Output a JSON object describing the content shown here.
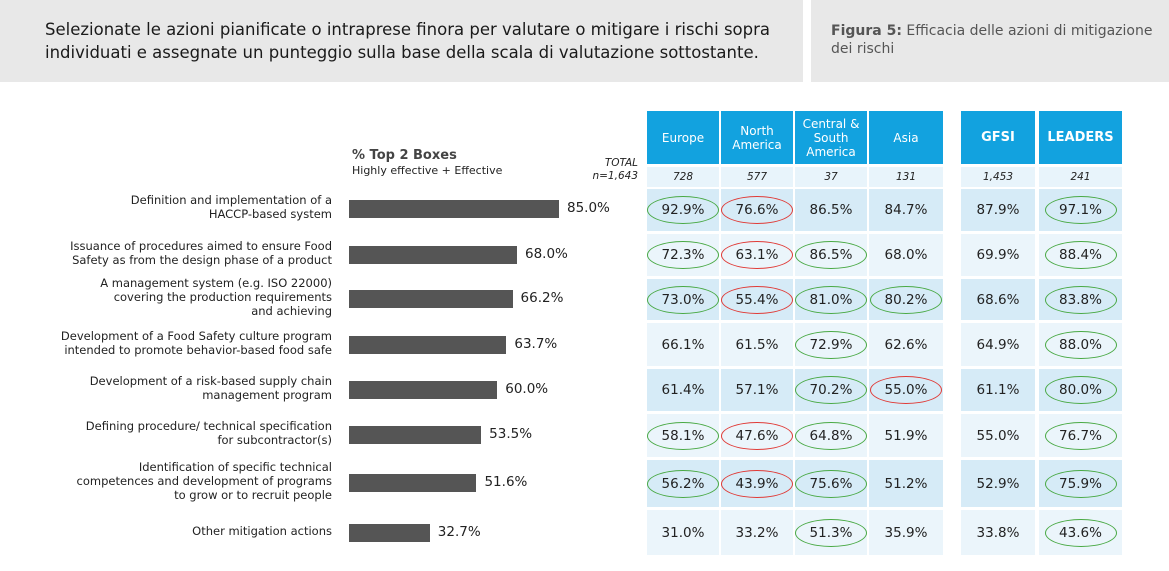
{
  "header": {
    "question": "Selezionate le azioni pianificate o intraprese finora per valutare o mitigare i rischi sopra individuati e assegnate un punteggio sulla base della scala di valutazione sottostante.",
    "figure_label": "Figura 5:",
    "figure_title": "Efficacia delle azioni di mitigazione dei rischi"
  },
  "subtitle": {
    "line1": "% Top 2 Boxes",
    "line2": "Highly effective + Effective"
  },
  "total": {
    "label": "TOTAL",
    "n": "n=1,643"
  },
  "colors": {
    "header_blue": "#12a2df",
    "bar": "#555555",
    "green_oval": "#49a944",
    "red_oval": "#e03a36"
  },
  "chart_data": {
    "type": "bar",
    "orientation": "horizontal",
    "categories": [
      "Definition and implementation of a HACCP-based system",
      "Issuance of procedures aimed to ensure Food Safety as from the design phase of a product",
      "A management system (e.g. ISO 22000) covering the production requirements and achieving",
      "Development of a Food Safety culture program intended to promote behavior-based food safe",
      "Development of a risk-based supply chain management program",
      "Defining procedure/ technical specification for subcontractor(s)",
      "Identification of specific technical competences and development of programs to grow or to recruit people",
      "Other mitigation actions"
    ],
    "values": [
      85.0,
      68.0,
      66.2,
      63.7,
      60.0,
      53.5,
      51.6,
      32.7
    ],
    "value_labels": [
      "85.0%",
      "68.0%",
      "66.2%",
      "63.7%",
      "60.0%",
      "53.5%",
      "51.6%",
      "32.7%"
    ],
    "label_lines": [
      [
        "Definition and implementation of a",
        "HACCP-based system"
      ],
      [
        "Issuance of procedures aimed to ensure Food",
        "Safety as from the design phase of a product"
      ],
      [
        "A management system (e.g. ISO 22000)",
        "covering the production requirements",
        "and achieving"
      ],
      [
        "Development of a Food Safety culture program",
        "intended to promote behavior-based food safe"
      ],
      [
        "Development of a risk-based supply chain",
        "management program"
      ],
      [
        "Defining procedure/ technical specification",
        "for subcontractor(s)"
      ],
      [
        "Identification of specific technical",
        "competences and development of programs",
        "to grow or to recruit people"
      ],
      [
        "Other mitigation actions"
      ]
    ],
    "xlim": [
      0,
      100
    ]
  },
  "table": {
    "columns": [
      {
        "label": "Europe",
        "n": "728"
      },
      {
        "label": "North America",
        "n": "577"
      },
      {
        "label": "Central & South America",
        "n": "37"
      },
      {
        "label": "Asia",
        "n": "131"
      },
      {
        "label": "GFSI",
        "n": "1,453"
      },
      {
        "label": "LEADERS",
        "n": "241"
      }
    ],
    "rows": [
      [
        "92.9%",
        "76.6%",
        "86.5%",
        "84.7%",
        "87.9%",
        "97.1%"
      ],
      [
        "72.3%",
        "63.1%",
        "86.5%",
        "68.0%",
        "69.9%",
        "88.4%"
      ],
      [
        "73.0%",
        "55.4%",
        "81.0%",
        "80.2%",
        "68.6%",
        "83.8%"
      ],
      [
        "66.1%",
        "61.5%",
        "72.9%",
        "62.6%",
        "64.9%",
        "88.0%"
      ],
      [
        "61.4%",
        "57.1%",
        "70.2%",
        "55.0%",
        "61.1%",
        "80.0%"
      ],
      [
        "58.1%",
        "47.6%",
        "64.8%",
        "51.9%",
        "55.0%",
        "76.7%"
      ],
      [
        "56.2%",
        "43.9%",
        "75.6%",
        "51.2%",
        "52.9%",
        "75.9%"
      ],
      [
        "31.0%",
        "33.2%",
        "51.3%",
        "35.9%",
        "33.8%",
        "43.6%"
      ]
    ],
    "highlights": [
      [
        "green",
        "red",
        "",
        "",
        "",
        "green"
      ],
      [
        "green",
        "red",
        "green",
        "",
        "",
        "green"
      ],
      [
        "green",
        "red",
        "green",
        "green",
        "",
        "green"
      ],
      [
        "",
        "",
        "green",
        "",
        "",
        "green"
      ],
      [
        "",
        "",
        "green",
        "red",
        "",
        "green"
      ],
      [
        "green",
        "red",
        "green",
        "",
        "",
        "green"
      ],
      [
        "green",
        "red",
        "green",
        "",
        "",
        "green"
      ],
      [
        "",
        "",
        "green",
        "",
        "",
        "green"
      ]
    ]
  }
}
